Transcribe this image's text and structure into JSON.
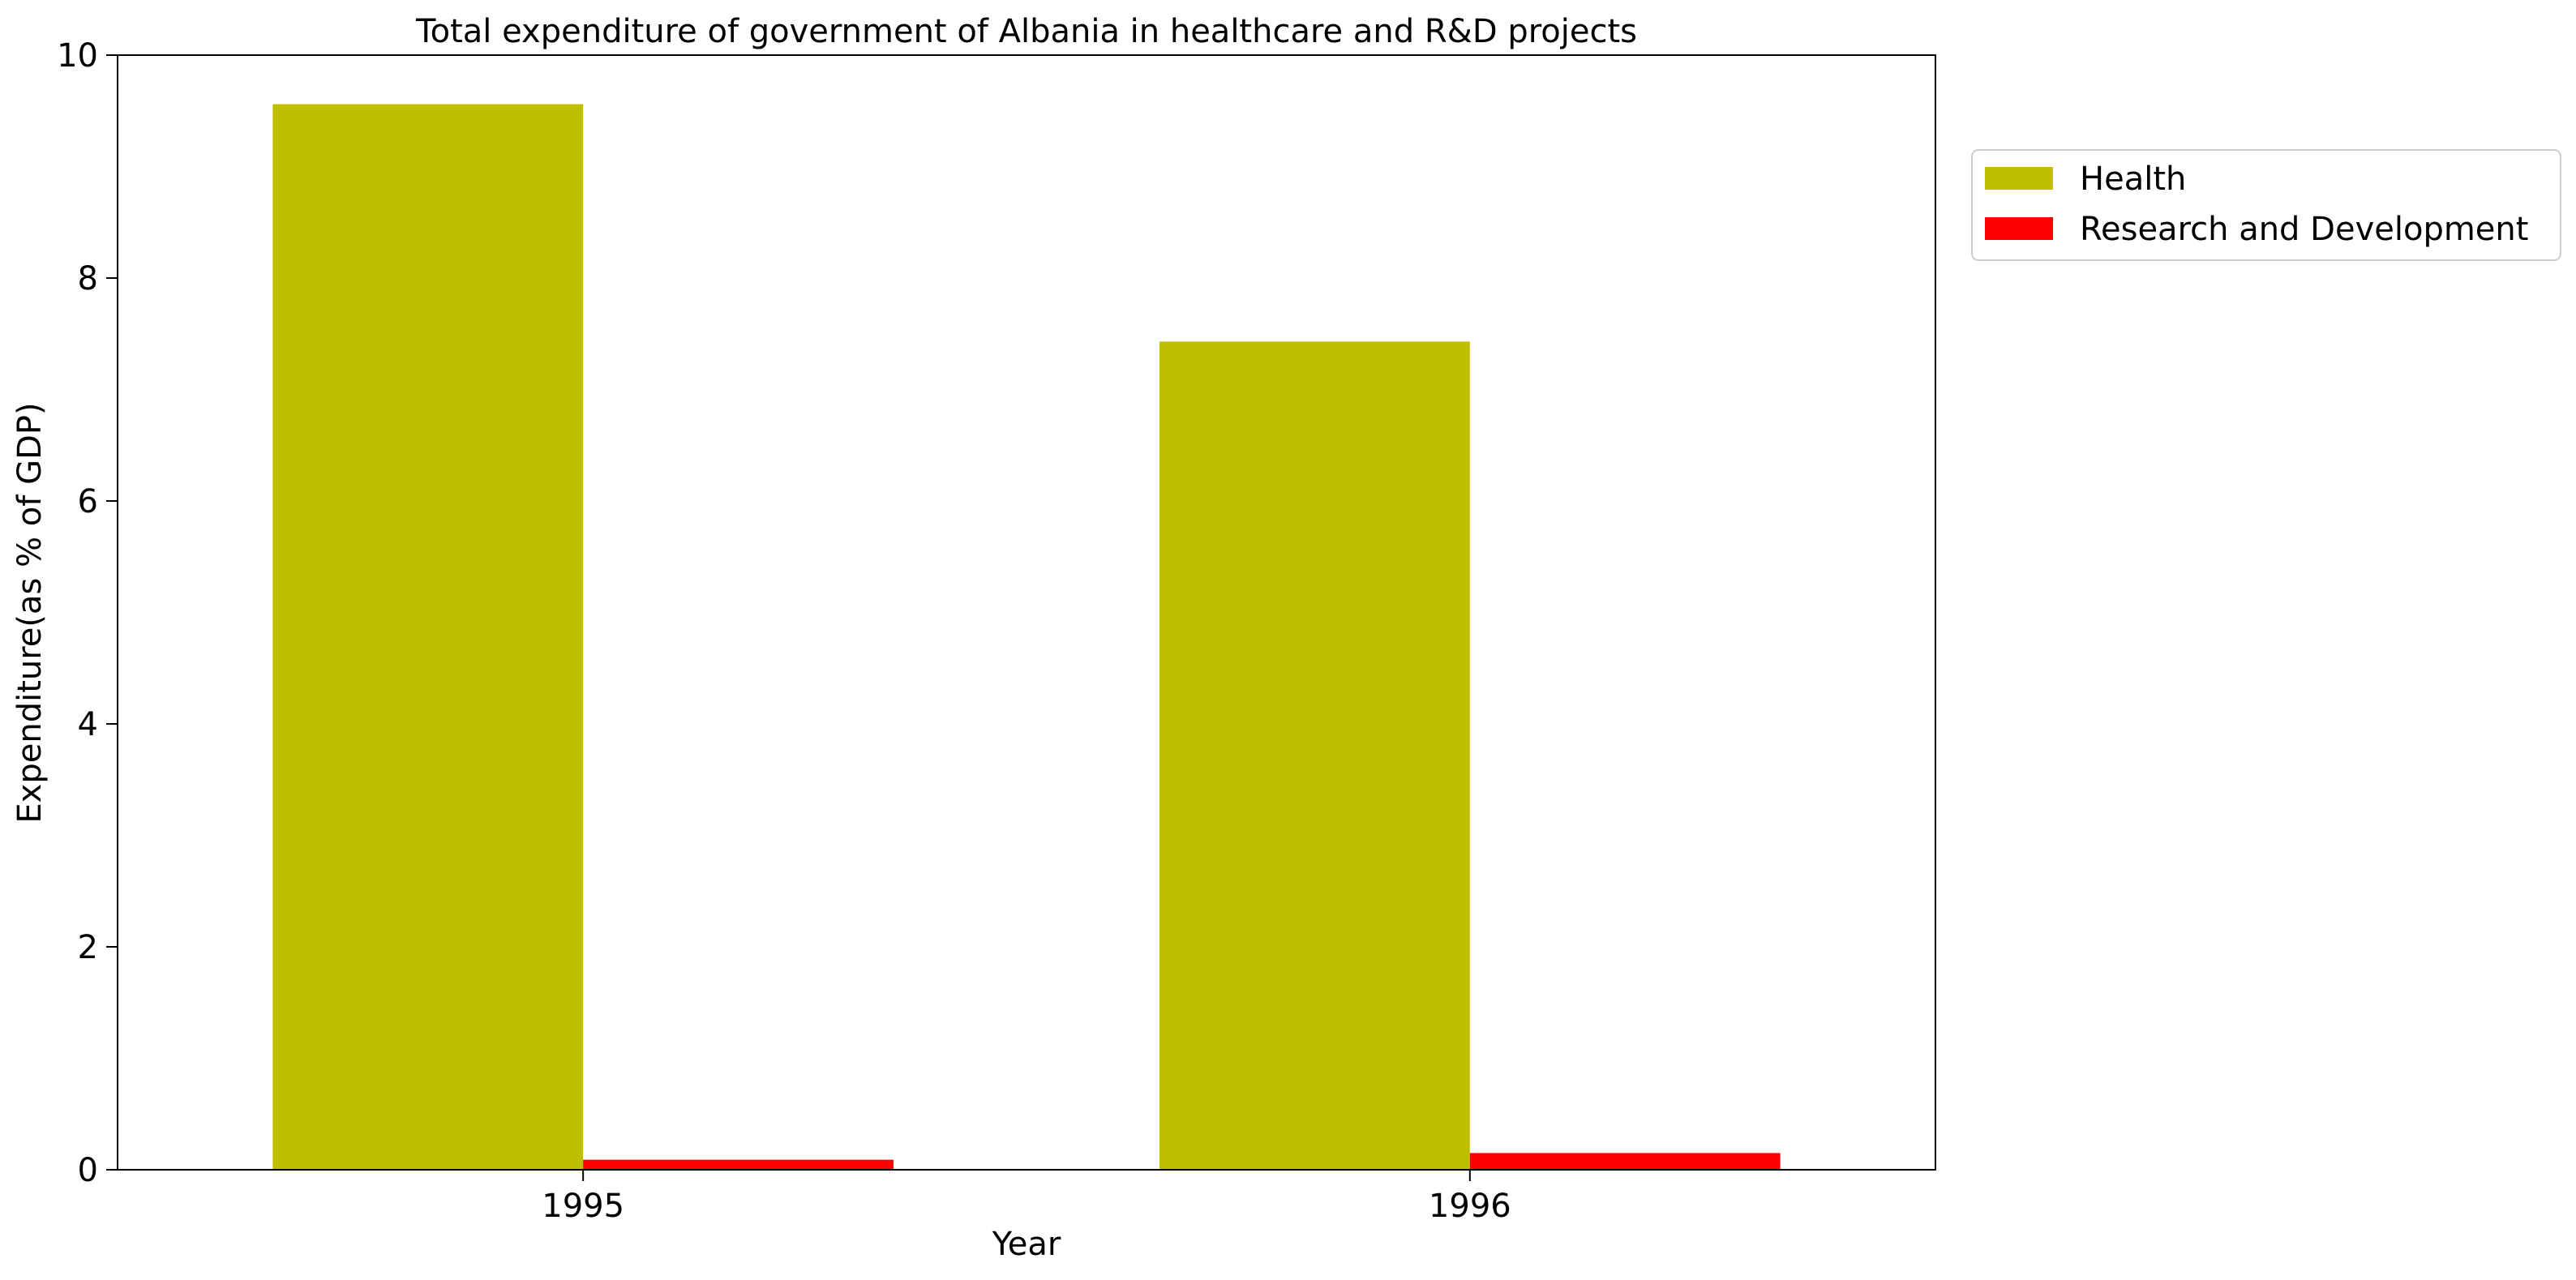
{
  "chart_data": {
    "type": "bar",
    "title": "Total expenditure of government of Albania in healthcare and R&D projects",
    "xlabel": "Year",
    "ylabel": "Expenditure(as % of GDP)",
    "categories": [
      "1995",
      "1996"
    ],
    "series": [
      {
        "name": "Health",
        "values": [
          9.56,
          7.43
        ],
        "color": "#bfbf00"
      },
      {
        "name": "Research and Development",
        "values": [
          0.09,
          0.15
        ],
        "color": "#ff0000"
      }
    ],
    "ylim": [
      0,
      10
    ],
    "yticks": [
      "0",
      "2",
      "4",
      "6",
      "8",
      "10"
    ],
    "grid": false,
    "legend": "outside-top-right"
  }
}
